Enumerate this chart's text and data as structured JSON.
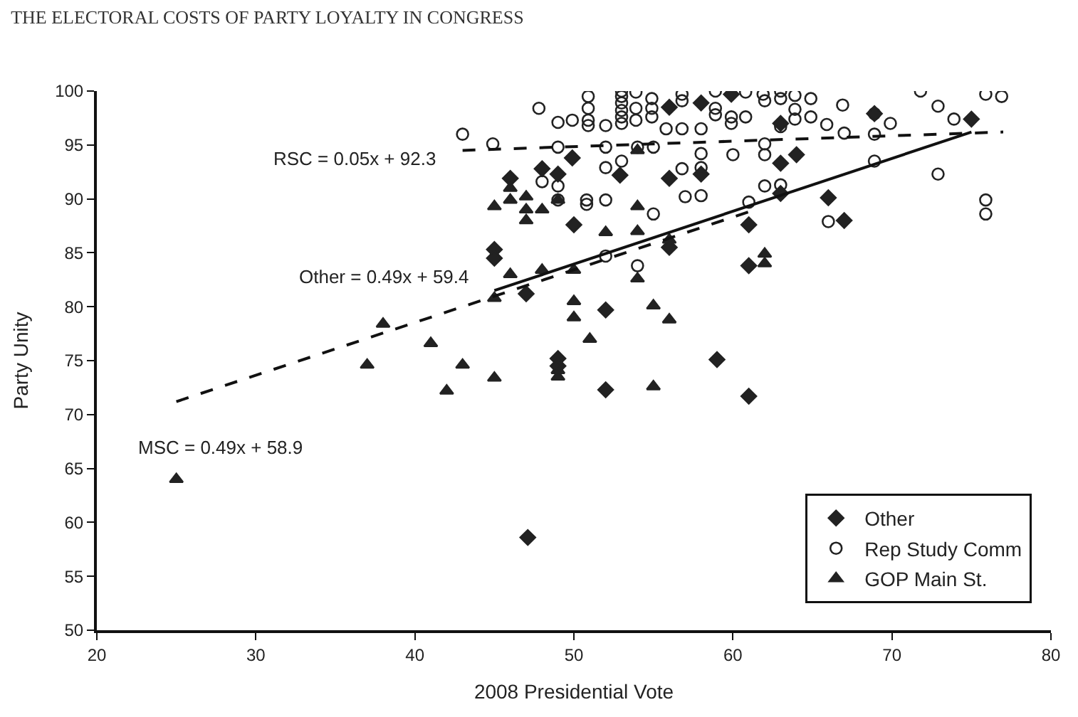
{
  "chart_data": {
    "type": "scatter",
    "title": "THE ELECTORAL COSTS OF PARTY LOYALTY IN CONGRESS",
    "xlabel": "2008 Presidential Vote",
    "ylabel": "Party Unity",
    "xlim": [
      20,
      80
    ],
    "xticks": [
      20,
      30,
      40,
      50,
      60,
      70,
      80
    ],
    "ylim": [
      50,
      100
    ],
    "yticks": [
      50,
      55,
      60,
      65,
      70,
      75,
      80,
      85,
      90,
      95,
      100
    ],
    "legend": "bottom right",
    "series": [
      {
        "name": "Other",
        "marker": "diamond",
        "color": "#222222",
        "x": [
          45,
          45,
          46,
          47,
          48,
          49,
          49,
          49,
          49.9,
          50,
          52,
          52,
          52.9,
          56,
          56,
          56,
          58,
          58,
          59,
          59.9,
          61,
          61,
          61,
          63,
          63,
          63,
          64,
          66,
          67,
          68.9,
          75,
          47.1
        ],
        "values": [
          85.3,
          84.5,
          91.9,
          81.2,
          92.8,
          92.3,
          75.2,
          74.5,
          93.8,
          87.6,
          79.7,
          72.3,
          92.2,
          91.9,
          98.5,
          85.5,
          92.3,
          98.9,
          75.1,
          99.7,
          87.6,
          83.8,
          71.7,
          93.3,
          97,
          90.5,
          94.1,
          90.1,
          88,
          97.9,
          97.4,
          58.6
        ]
      },
      {
        "name": "Rep Study Comm",
        "marker": "circle",
        "color": "#222222",
        "x": [
          43,
          44.9,
          47.8,
          48,
          49,
          49,
          49,
          49,
          49.9,
          50.8,
          50.8,
          50.9,
          50.9,
          50.9,
          50.9,
          52,
          52,
          52,
          52,
          52,
          53,
          53,
          53,
          53,
          53,
          53,
          53,
          53.9,
          53.9,
          53.9,
          54,
          54,
          54.9,
          54.9,
          54.9,
          55,
          55,
          55.8,
          56.8,
          56.8,
          56.8,
          56.8,
          57,
          58,
          58,
          58,
          58,
          58.9,
          58.9,
          58.9,
          59.9,
          59.9,
          60,
          60.8,
          60.8,
          61,
          61.9,
          62,
          62,
          62,
          62,
          63,
          63,
          63,
          63,
          63.9,
          63.9,
          63.9,
          64.9,
          64.9,
          65.9,
          66,
          66.9,
          67,
          68.9,
          68.9,
          68.9,
          69.9,
          71.8,
          72.9,
          72.9,
          73.9,
          75.9,
          76.9,
          75.9,
          75.9
        ],
        "values": [
          96,
          95.1,
          98.4,
          91.6,
          97.1,
          94.8,
          91.2,
          89.9,
          97.3,
          89.9,
          89.5,
          99.5,
          98.4,
          97.3,
          96.8,
          96.8,
          94.8,
          92.9,
          89.9,
          84.7,
          100,
          99.5,
          98.9,
          98.2,
          97.6,
          97,
          93.5,
          99.9,
          98.4,
          97.3,
          94.8,
          83.8,
          99.3,
          98.4,
          97.6,
          94.8,
          88.6,
          96.5,
          99.7,
          99.1,
          96.5,
          92.8,
          90.2,
          96.5,
          94.2,
          92.9,
          90.3,
          100,
          98.4,
          97.8,
          97.6,
          97,
          94.1,
          99.9,
          97.6,
          89.7,
          99.7,
          99.1,
          95.1,
          94.1,
          91.2,
          100,
          99.3,
          96.7,
          91.3,
          99.6,
          98.3,
          97.4,
          99.3,
          97.6,
          96.9,
          87.9,
          98.7,
          96.1,
          97.9,
          96,
          93.5,
          97,
          100,
          98.6,
          92.3,
          97.4,
          99.7,
          99.5,
          89.9,
          88.6
        ]
      },
      {
        "name": "GOP Main St.",
        "marker": "triangle",
        "color": "#222222",
        "x": [
          25,
          37,
          38,
          41,
          42,
          43,
          45,
          45,
          45,
          46,
          46,
          46,
          47,
          47,
          47,
          48,
          48,
          49,
          49,
          49,
          50,
          50,
          50,
          51,
          52,
          54,
          54,
          54,
          54,
          55,
          55,
          56,
          56,
          62,
          62
        ],
        "values": [
          64,
          74.6,
          78.4,
          76.6,
          72.2,
          74.6,
          73.4,
          80.8,
          89.3,
          83,
          91,
          89.9,
          90.2,
          89,
          88,
          89,
          83.4,
          74.1,
          73.5,
          89.9,
          83.4,
          80.5,
          79,
          77,
          86.9,
          89.3,
          87,
          82.6,
          94.5,
          80.1,
          72.6,
          78.8,
          86.2,
          84.9,
          84
        ]
      },
      {
        "type": "line",
        "line_style": "dashed",
        "marker": "none",
        "color": "#111111",
        "x": [
          43,
          77
        ],
        "values": [
          94.5,
          96.2
        ]
      },
      {
        "type": "line",
        "line_style": "solid",
        "marker": "none",
        "color": "#111111",
        "x": [
          45,
          75
        ],
        "values": [
          81.5,
          96.2
        ]
      },
      {
        "type": "line",
        "line_style": "dashed",
        "marker": "none",
        "color": "#111111",
        "x": [
          25,
          61
        ],
        "values": [
          71.2,
          88.8
        ]
      }
    ],
    "annotations": [
      "RSC = 0.05x + 92.3",
      "Other = 0.49x + 59.4",
      "MSC = 0.49x + 58.9"
    ]
  }
}
